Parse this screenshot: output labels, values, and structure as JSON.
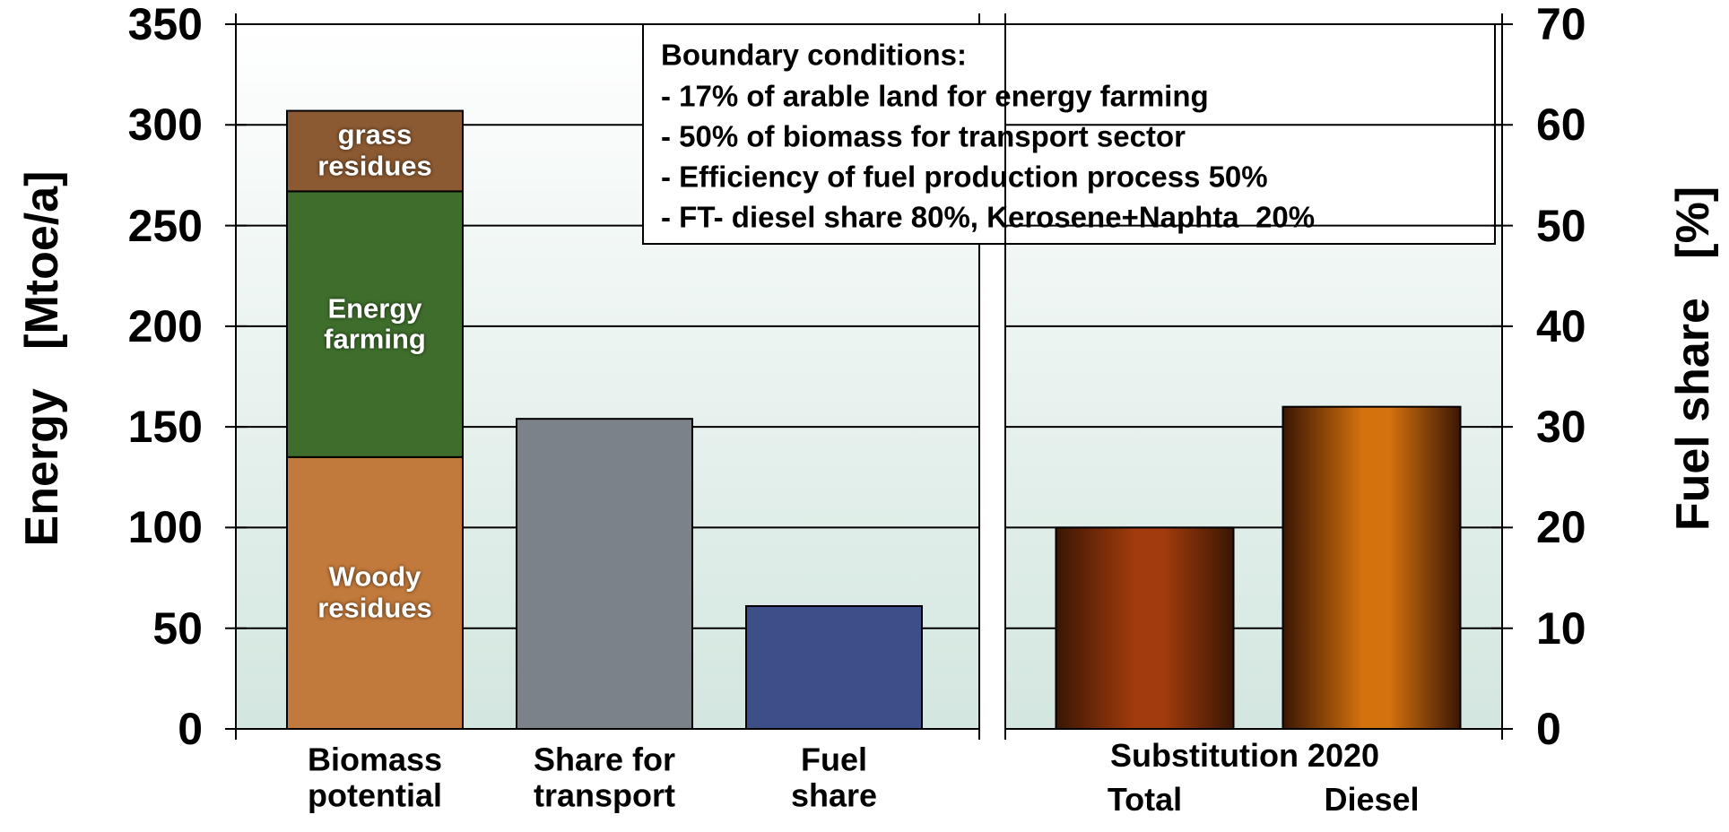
{
  "chart_data": [
    {
      "type": "bar",
      "ylabel": "Energy   [Mtoe/a]",
      "categories": [
        "Biomass\npotential",
        "Share for\ntransport",
        "Fuel\nshare"
      ],
      "series": [
        {
          "name": "Woody\nresidues",
          "color": "#c27a3c",
          "values": [
            135,
            null,
            null
          ]
        },
        {
          "name": "Energy\nfarming",
          "color": "#3f6e2c",
          "values": [
            132,
            null,
            null
          ]
        },
        {
          "name": "grass\nresidues",
          "color": "#8c5a32",
          "values": [
            40,
            null,
            null
          ]
        }
      ],
      "values": [
        null,
        154,
        61
      ],
      "colors": [
        null,
        "#7b828a",
        "#3c4f88"
      ],
      "ylim": [
        0,
        350
      ],
      "yticks": [
        0,
        50,
        100,
        150,
        200,
        250,
        300,
        350
      ],
      "grid": true,
      "annotation": {
        "title": "Boundary conditions:",
        "lines": [
          "- 17% of arable land for energy farming",
          "- 50% of biomass for transport sector",
          "- Efficiency of fuel production process 50%",
          "- FT- diesel share 80%, Kerosene+Naphta  20%"
        ]
      }
    },
    {
      "type": "bar",
      "title": "Substitution 2020",
      "categories": [
        "Total",
        "Diesel"
      ],
      "values": [
        20,
        32
      ],
      "colors": [
        "#a33c0c",
        "#d4720e"
      ],
      "ylim": [
        0,
        70
      ],
      "yticks": [
        0,
        10,
        20,
        30,
        40,
        50,
        60,
        70
      ],
      "grid": true,
      "ylabel": "Fuel share   [%]",
      "yaxis": "right"
    }
  ]
}
